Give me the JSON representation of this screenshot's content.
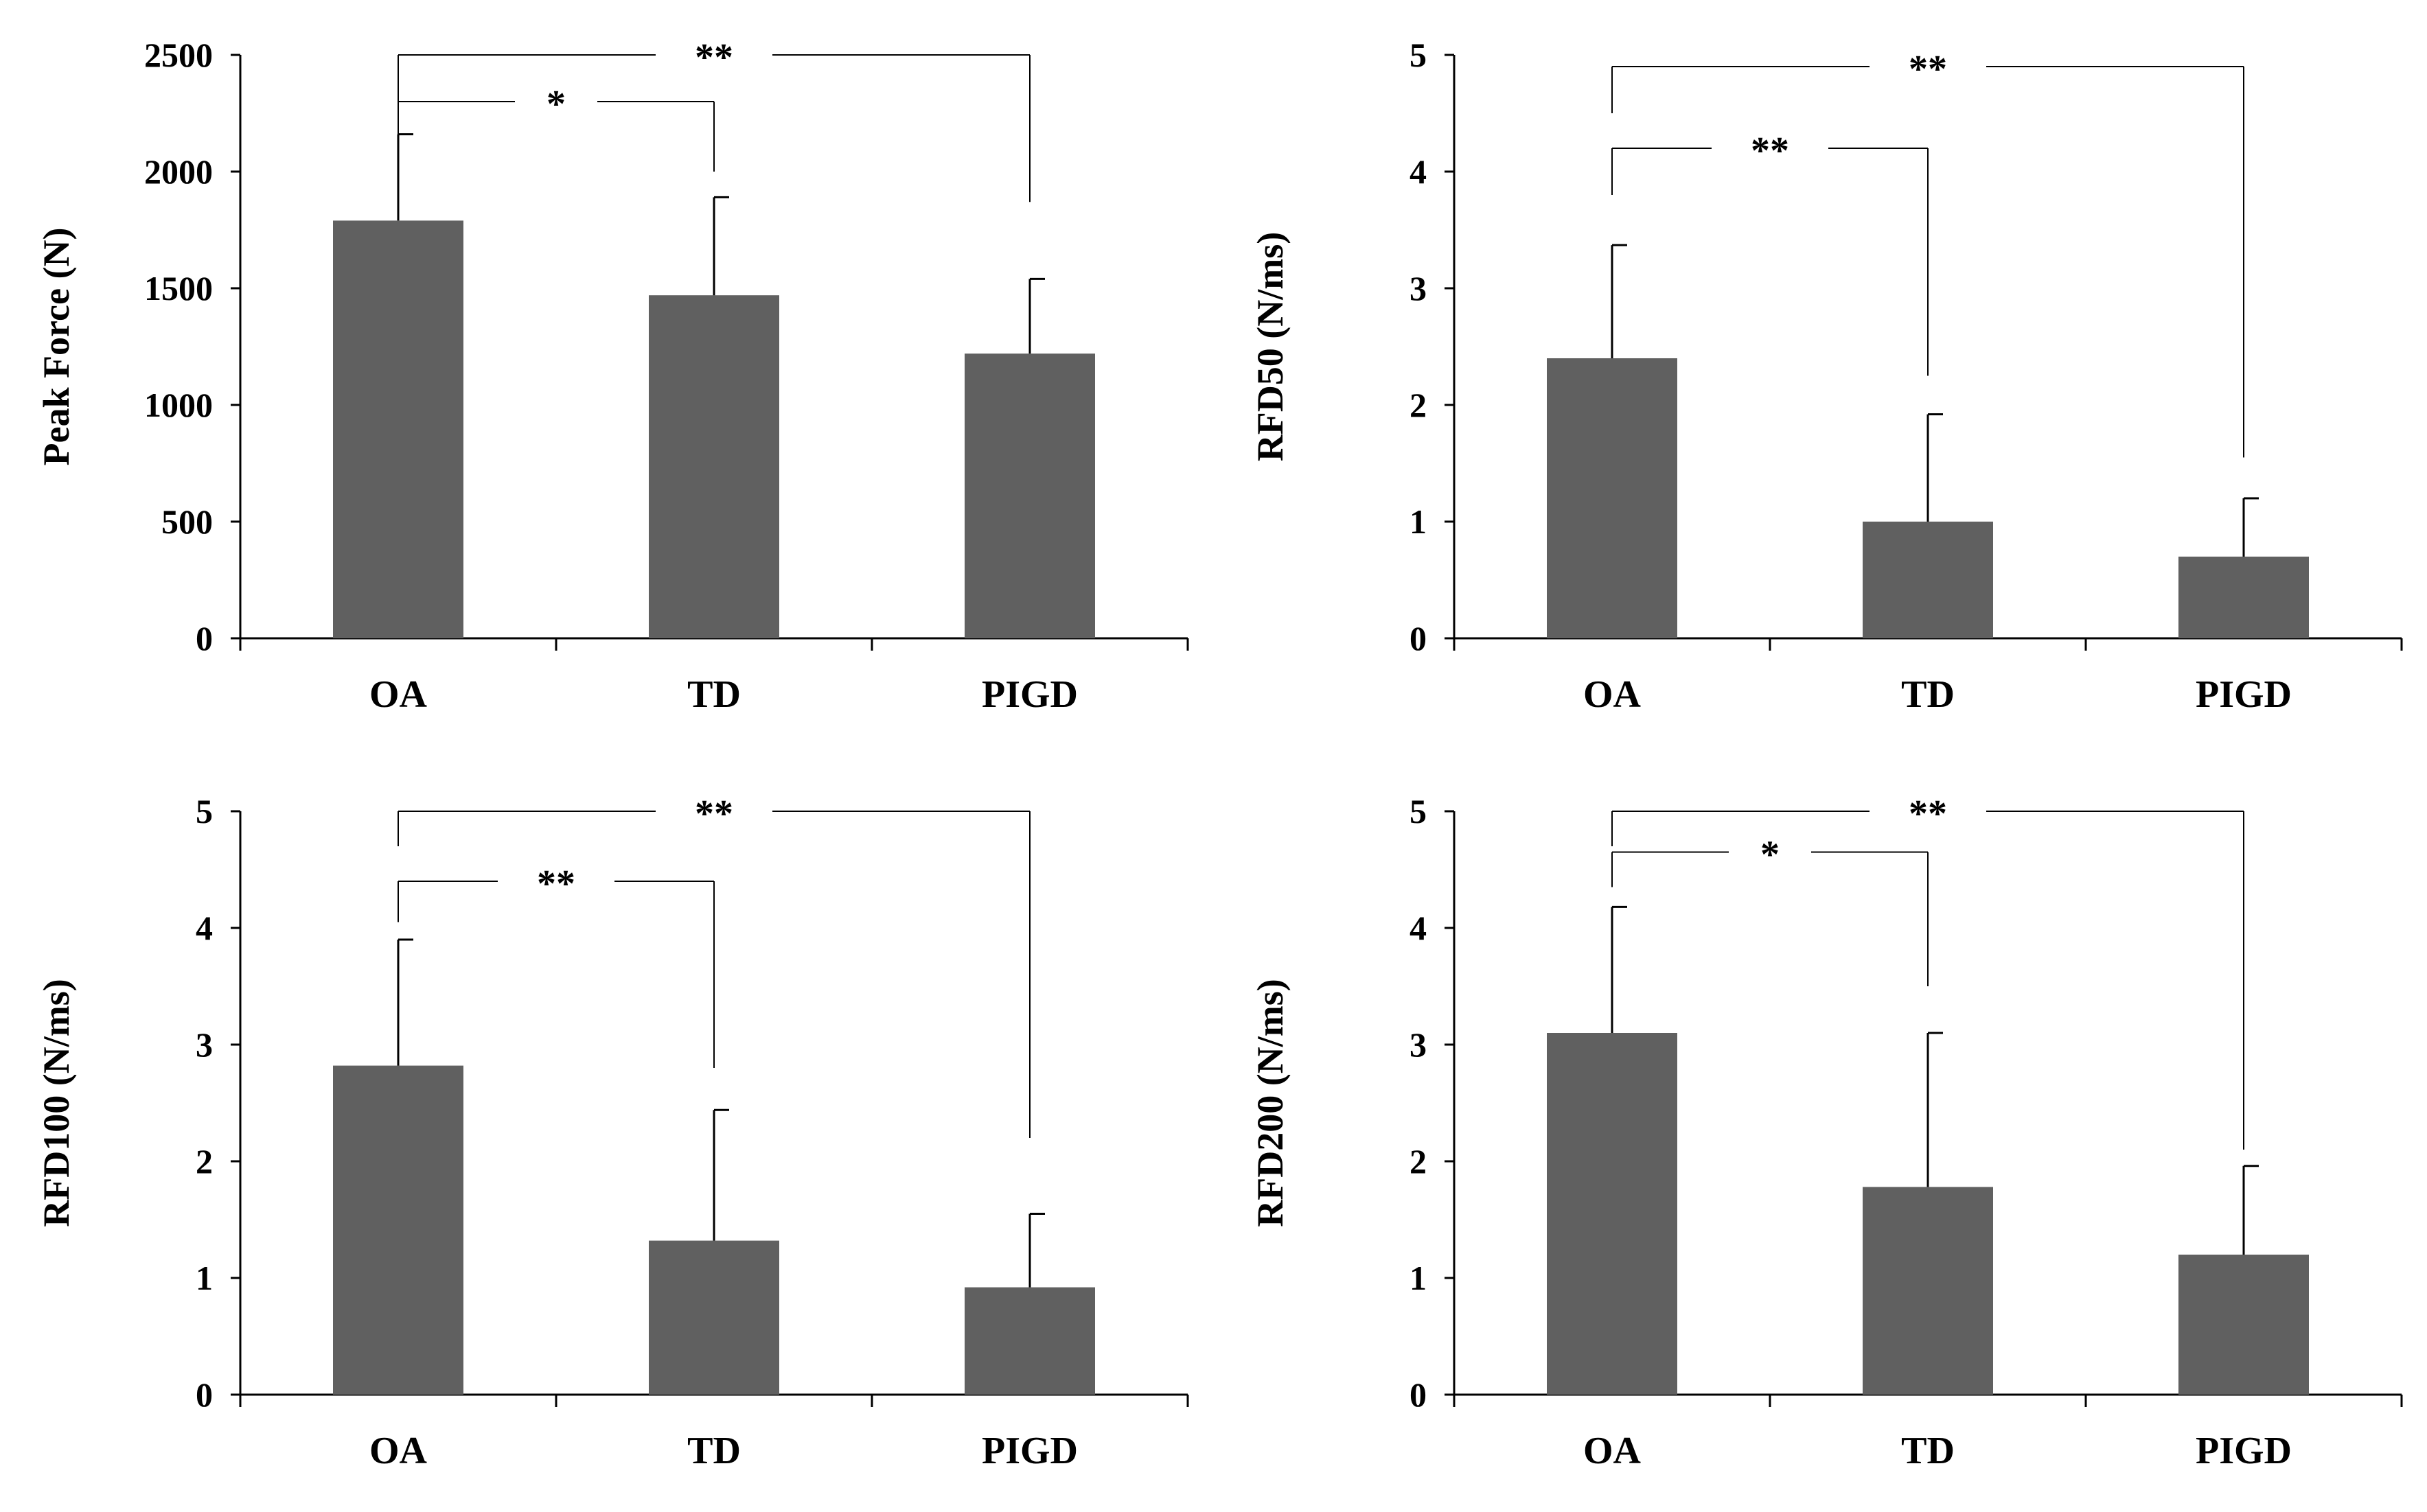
{
  "chart_data": [
    {
      "type": "bar",
      "title": "",
      "xlabel": "",
      "ylabel": "Peak Force (N)",
      "categories": [
        "OA",
        "TD",
        "PIGD"
      ],
      "values": [
        1790,
        1470,
        1220
      ],
      "errors_upper": [
        2160,
        1890,
        1540
      ],
      "ylim": [
        0,
        2500
      ],
      "yticks": [
        "0",
        "500",
        "1000",
        "1500",
        "2000",
        "2500"
      ],
      "bar_color": "#606060",
      "significance": [
        {
          "from": 0,
          "to": 1,
          "label": "*",
          "level": 2300,
          "from_end": 2340,
          "to_end": 2000
        },
        {
          "from": 0,
          "to": 2,
          "label": "**",
          "level": 2500,
          "from_end": 2160,
          "to_end": 1870
        }
      ]
    },
    {
      "type": "bar",
      "title": "",
      "xlabel": "",
      "ylabel": "RFD50 (N/ms)",
      "categories": [
        "OA",
        "TD",
        "PIGD"
      ],
      "values": [
        2.4,
        1.0,
        0.7
      ],
      "errors_upper": [
        3.37,
        1.92,
        1.2
      ],
      "ylim": [
        0,
        5
      ],
      "yticks": [
        "0",
        "1",
        "2",
        "3",
        "4",
        "5"
      ],
      "bar_color": "#606060",
      "significance": [
        {
          "from": 0,
          "to": 1,
          "label": "**",
          "level": 4.2,
          "from_end": 3.8,
          "to_end": 2.25
        },
        {
          "from": 0,
          "to": 2,
          "label": "**",
          "level": 4.9,
          "from_end": 4.5,
          "to_end": 1.55
        }
      ]
    },
    {
      "type": "bar",
      "title": "",
      "xlabel": "",
      "ylabel": "RFD100 (N/ms)",
      "categories": [
        "OA",
        "TD",
        "PIGD"
      ],
      "values": [
        2.82,
        1.32,
        0.92
      ],
      "errors_upper": [
        3.9,
        2.44,
        1.55
      ],
      "ylim": [
        0,
        5
      ],
      "yticks": [
        "0",
        "1",
        "2",
        "3",
        "4",
        "5"
      ],
      "bar_color": "#606060",
      "significance": [
        {
          "from": 0,
          "to": 1,
          "label": "**",
          "level": 4.4,
          "from_end": 4.05,
          "to_end": 2.8
        },
        {
          "from": 0,
          "to": 2,
          "label": "**",
          "level": 5.0,
          "from_end": 4.7,
          "to_end": 2.2
        }
      ]
    },
    {
      "type": "bar",
      "title": "",
      "xlabel": "",
      "ylabel": "RFD200 (N/ms)",
      "categories": [
        "OA",
        "TD",
        "PIGD"
      ],
      "values": [
        3.1,
        1.78,
        1.2
      ],
      "errors_upper": [
        4.18,
        3.1,
        1.96
      ],
      "ylim": [
        0,
        5
      ],
      "yticks": [
        "0",
        "1",
        "2",
        "3",
        "4",
        "5"
      ],
      "bar_color": "#606060",
      "significance": [
        {
          "from": 0,
          "to": 1,
          "label": "*",
          "level": 4.65,
          "from_end": 4.35,
          "to_end": 3.5
        },
        {
          "from": 0,
          "to": 2,
          "label": "**",
          "level": 5.0,
          "from_end": 4.7,
          "to_end": 2.1
        }
      ]
    }
  ]
}
